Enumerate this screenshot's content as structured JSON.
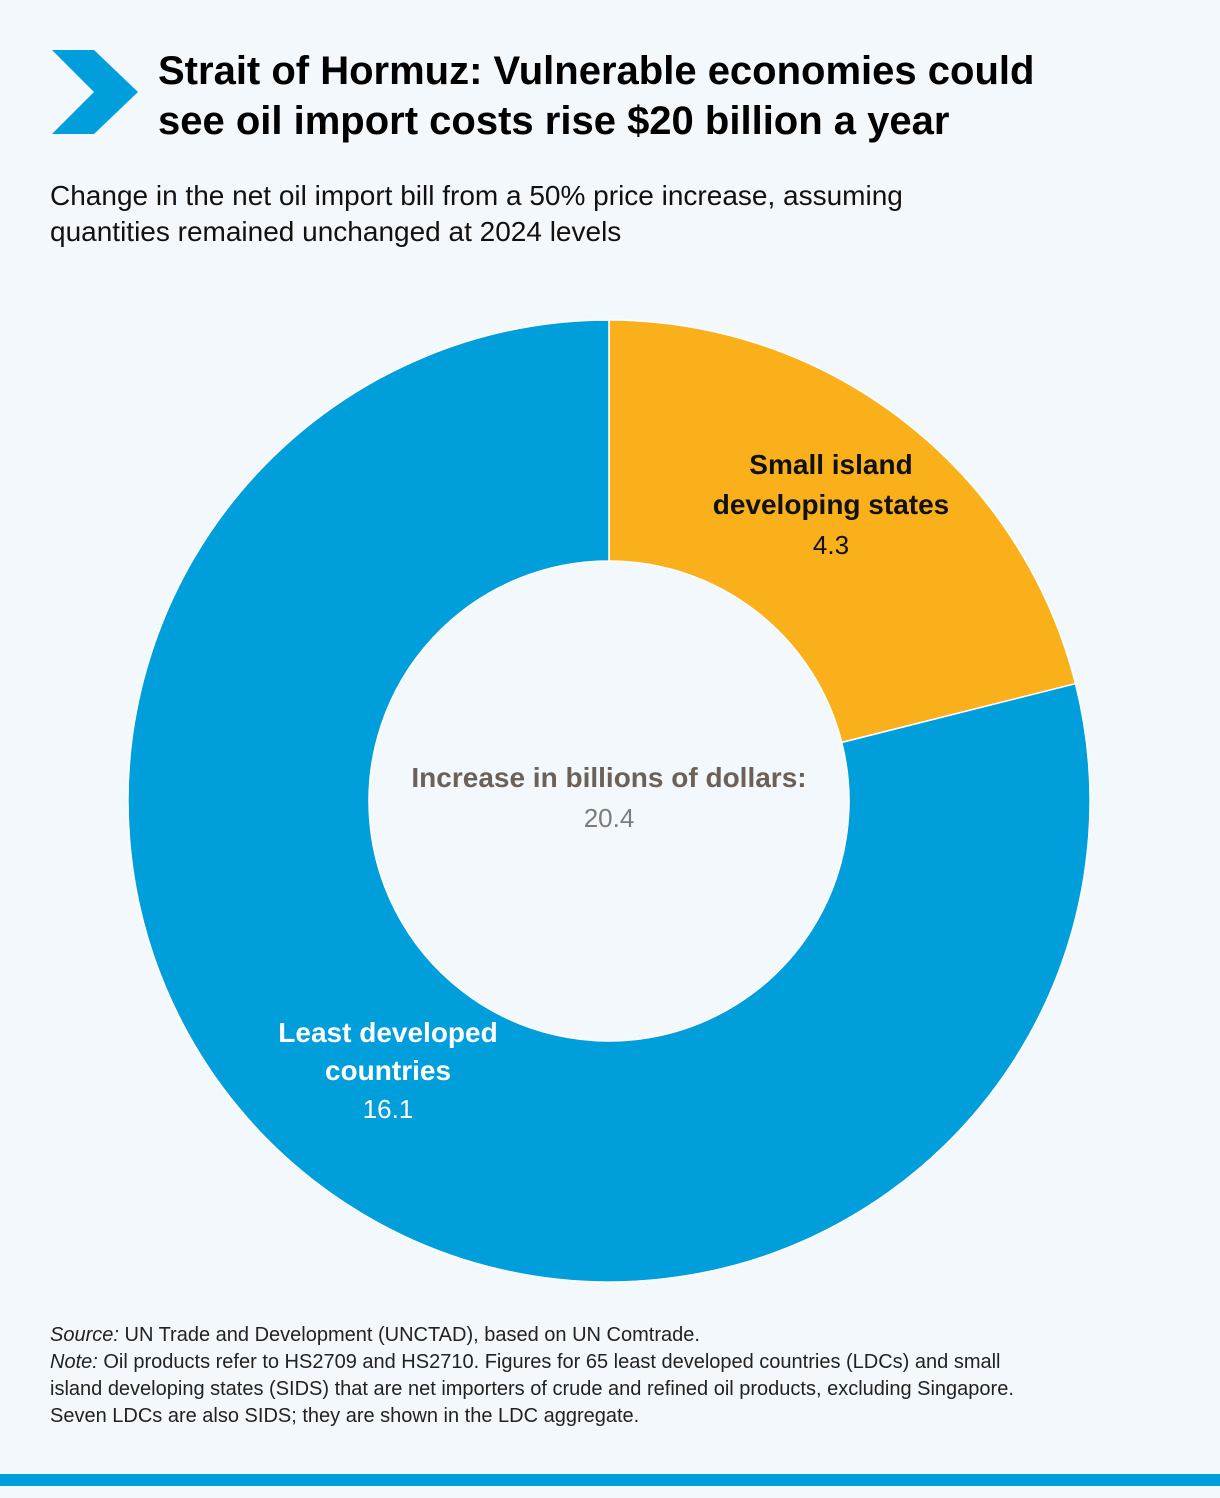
{
  "header": {
    "title_lines": [
      "Strait of Hormuz: Vulnerable economies could",
      "see oil import costs rise $20 billion a year"
    ],
    "subtitle_lines": [
      "Change in the net oil import bill from a 50% price increase, assuming",
      "quantities remained unchanged at 2024 levels"
    ],
    "icon": "chevron-right-icon"
  },
  "chart_data": {
    "type": "pie",
    "donut": true,
    "center_label": "Increase in billions of dollars:",
    "center_value": "20.4",
    "slices": [
      {
        "label_lines": [
          "Small island",
          "developing states"
        ],
        "value": 4.3,
        "value_text": "4.3",
        "color": "#f9b01b",
        "text_color": "#111111"
      },
      {
        "label_lines": [
          "Least developed",
          "countries"
        ],
        "value": 16.1,
        "value_text": "16.1",
        "color": "#009edb",
        "text_color": "#ffffff"
      }
    ]
  },
  "footer": {
    "source_label": "Source:",
    "source_text": " UN Trade and Development (UNCTAD), based on UN Comtrade.",
    "note_label": "Note:",
    "note_lines": [
      " Oil products refer to HS2709 and HS2710. Figures for 65 least developed countries (LDCs) and small",
      "island developing states (SIDS) that are net importers of crude and refined oil products, excluding Singapore.",
      "Seven LDCs are also SIDS; they are shown in the LDC aggregate."
    ]
  },
  "colors": {
    "accent": "#009edb",
    "highlight": "#f9b01b",
    "center_label": "#6b6158",
    "center_value": "#7c7c7c",
    "background": "#f3f8fc"
  }
}
